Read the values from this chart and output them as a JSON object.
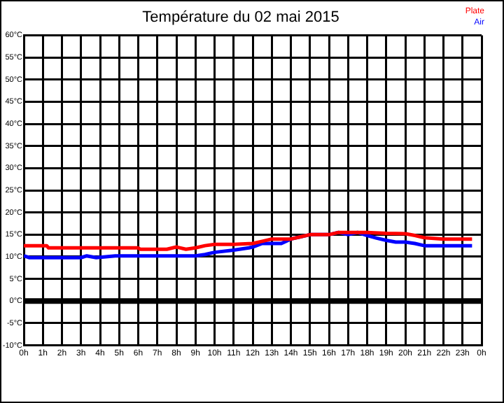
{
  "chart_data": {
    "type": "line",
    "title": "Température du 02 mai 2015",
    "xlim": [
      "2015-05-02T00:00",
      "2015-05-03T00:00"
    ],
    "xticks": [
      {
        "value": "2015-05-02T00:00",
        "label": "0h"
      },
      {
        "value": "2015-05-02T01:00",
        "label": "1h"
      },
      {
        "value": "2015-05-02T02:00",
        "label": "2h"
      },
      {
        "value": "2015-05-02T03:00",
        "label": "3h"
      },
      {
        "value": "2015-05-02T04:00",
        "label": "4h"
      },
      {
        "value": "2015-05-02T05:00",
        "label": "5h"
      },
      {
        "value": "2015-05-02T06:00",
        "label": "6h"
      },
      {
        "value": "2015-05-02T07:00",
        "label": "7h"
      },
      {
        "value": "2015-05-02T08:00",
        "label": "8h"
      },
      {
        "value": "2015-05-02T09:00",
        "label": "9h"
      },
      {
        "value": "2015-05-02T10:00",
        "label": "10h"
      },
      {
        "value": "2015-05-02T11:00",
        "label": "11h"
      },
      {
        "value": "2015-05-02T12:00",
        "label": "12h"
      },
      {
        "value": "2015-05-02T13:00",
        "label": "13h"
      },
      {
        "value": "2015-05-02T14:00",
        "label": "14h"
      },
      {
        "value": "2015-05-02T15:00",
        "label": "15h"
      },
      {
        "value": "2015-05-02T16:00",
        "label": "16h"
      },
      {
        "value": "2015-05-02T17:00",
        "label": "17h"
      },
      {
        "value": "2015-05-02T18:00",
        "label": "18h"
      },
      {
        "value": "2015-05-02T19:00",
        "label": "19h"
      },
      {
        "value": "2015-05-02T20:00",
        "label": "20h"
      },
      {
        "value": "2015-05-02T21:00",
        "label": "21h"
      },
      {
        "value": "2015-05-02T22:00",
        "label": "22h"
      },
      {
        "value": "2015-05-02T23:00",
        "label": "23h"
      },
      {
        "value": "2015-05-03T00:00",
        "label": "0h"
      }
    ],
    "ylim": [
      -10,
      60
    ],
    "yticks": [
      {
        "value": -10,
        "label": "-10°C"
      },
      {
        "value": -5,
        "label": "-5°C"
      },
      {
        "value": 0,
        "label": "0°C"
      },
      {
        "value": 5,
        "label": "5°C"
      },
      {
        "value": 10,
        "label": "10°C"
      },
      {
        "value": 15,
        "label": "15°C"
      },
      {
        "value": 20,
        "label": "20°C"
      },
      {
        "value": 25,
        "label": "25°C"
      },
      {
        "value": 30,
        "label": "30°C"
      },
      {
        "value": 35,
        "label": "35°C"
      },
      {
        "value": 40,
        "label": "40°C"
      },
      {
        "value": 45,
        "label": "45°C"
      },
      {
        "value": 50,
        "label": "50°C"
      },
      {
        "value": 55,
        "label": "55°C"
      },
      {
        "value": 60,
        "label": "60°C"
      }
    ],
    "grid": true,
    "legend": "top right",
    "marker": "none",
    "line_style": "solid",
    "ref_lines": [
      {
        "axis": "y",
        "value": 0,
        "color": "#000000"
      }
    ],
    "series": [
      {
        "name": "Plate",
        "color": "#ff0000",
        "x": [
          "2015-05-02T00:00",
          "2015-05-02T01:12",
          "2015-05-02T01:18",
          "2015-05-02T06:00",
          "2015-05-02T06:06",
          "2015-05-02T07:30",
          "2015-05-02T08:00",
          "2015-05-02T08:30",
          "2015-05-02T09:00",
          "2015-05-02T09:30",
          "2015-05-02T10:00",
          "2015-05-02T11:00",
          "2015-05-02T12:00",
          "2015-05-02T12:30",
          "2015-05-02T13:00",
          "2015-05-02T14:00",
          "2015-05-02T14:30",
          "2015-05-02T15:00",
          "2015-05-02T16:00",
          "2015-05-02T16:30",
          "2015-05-02T17:00",
          "2015-05-02T18:00",
          "2015-05-02T19:00",
          "2015-05-02T20:00",
          "2015-05-02T20:30",
          "2015-05-02T21:00",
          "2015-05-02T22:00",
          "2015-05-02T23:30"
        ],
        "values": [
          12.5,
          12.5,
          12,
          12,
          11.7,
          11.7,
          12.2,
          11.7,
          12,
          12.5,
          12.8,
          12.8,
          13,
          13.5,
          14,
          14,
          14.5,
          15,
          15,
          15.5,
          15.5,
          15.5,
          15.3,
          15.2,
          14.8,
          14.3,
          14,
          14
        ]
      },
      {
        "name": "Air",
        "color": "#0000ff",
        "x": [
          "2015-05-02T00:00",
          "2015-05-02T00:18",
          "2015-05-02T03:00",
          "2015-05-02T03:18",
          "2015-05-02T03:48",
          "2015-05-02T04:48",
          "2015-05-02T09:00",
          "2015-05-02T09:30",
          "2015-05-02T10:00",
          "2015-05-02T11:00",
          "2015-05-02T11:48",
          "2015-05-02T12:00",
          "2015-05-02T12:30",
          "2015-05-02T13:00",
          "2015-05-02T13:30",
          "2015-05-02T14:00",
          "2015-05-02T14:30",
          "2015-05-02T15:00",
          "2015-05-02T16:00",
          "2015-05-02T16:30",
          "2015-05-02T17:00",
          "2015-05-02T17:30",
          "2015-05-02T18:00",
          "2015-05-02T18:30",
          "2015-05-02T19:00",
          "2015-05-02T19:30",
          "2015-05-02T20:00",
          "2015-05-02T20:30",
          "2015-05-02T21:00",
          "2015-05-02T23:30"
        ],
        "values": [
          10.2,
          9.8,
          9.8,
          10.2,
          9.8,
          10.2,
          10.2,
          10.5,
          11,
          11.5,
          12,
          12.2,
          13,
          13,
          13,
          14,
          14.5,
          15,
          15,
          15.5,
          15,
          15.5,
          14.8,
          14.2,
          13.7,
          13.3,
          13.3,
          13,
          12.5,
          12.5
        ]
      }
    ]
  }
}
